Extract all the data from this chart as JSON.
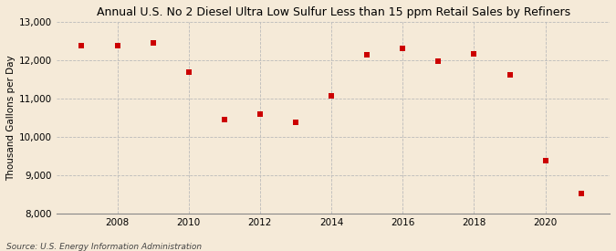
{
  "title": "Annual U.S. No 2 Diesel Ultra Low Sulfur Less than 15 ppm Retail Sales by Refiners",
  "ylabel": "Thousand Gallons per Day",
  "source": "Source: U.S. Energy Information Administration",
  "background_color": "#f5ead8",
  "plot_background_color": "#f5ead8",
  "x": [
    2007,
    2008,
    2009,
    2010,
    2011,
    2012,
    2013,
    2014,
    2015,
    2016,
    2017,
    2018,
    2019,
    2020,
    2021
  ],
  "y": [
    12380,
    12370,
    12460,
    11700,
    10450,
    10600,
    10380,
    11080,
    12130,
    12310,
    11980,
    12160,
    11620,
    9380,
    8520
  ],
  "marker_color": "#cc0000",
  "marker": "s",
  "marker_size": 4,
  "ylim": [
    8000,
    13000
  ],
  "yticks": [
    8000,
    9000,
    10000,
    11000,
    12000,
    13000
  ],
  "xtick_years": [
    2008,
    2010,
    2012,
    2014,
    2016,
    2018,
    2020
  ],
  "xlim_left": 2006.3,
  "xlim_right": 2021.8,
  "grid_color": "#bbbbbb",
  "grid_style": "--",
  "title_fontsize": 9.0,
  "axis_fontsize": 7.5,
  "ylabel_fontsize": 7.5,
  "source_fontsize": 6.5
}
